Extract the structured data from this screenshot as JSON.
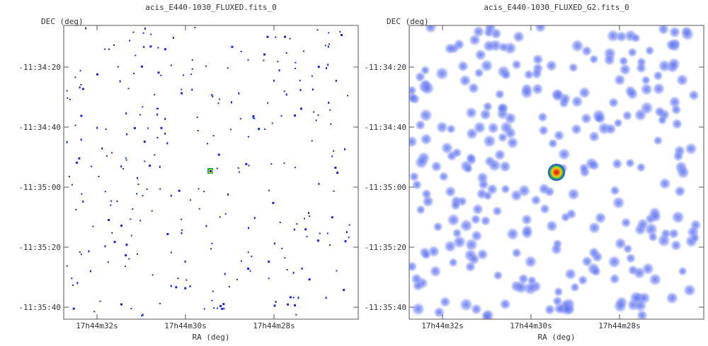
{
  "chart_data": [
    {
      "type": "scatter",
      "title": "acis_E440-1030_FLUXED.fits_0",
      "xlabel": "RA (deg)",
      "ylabel": "DEC (deg)",
      "x_ticks": [
        "17h44m32s",
        "17h44m30s",
        "17h44m28s"
      ],
      "y_ticks": [
        "-11:34:20",
        "-11:34:40",
        "-11:35:00",
        "-11:35:20",
        "-11:35:40"
      ],
      "render": "pixel",
      "source": {
        "ra": "17h44m29.2s",
        "dec": "-11:34:56",
        "label": "bright source"
      }
    },
    {
      "type": "scatter",
      "title": "acis_E440-1030_FLUXED_G2.fits_0",
      "xlabel": "RA (deg)",
      "ylabel": "DEC (deg)",
      "x_ticks": [
        "17h44m32s",
        "17h44m30s",
        "17h44m28s"
      ],
      "y_ticks": [
        "-11:34:20",
        "-11:34:40",
        "-11:35:00",
        "-11:35:20",
        "-11:35:40"
      ],
      "render": "smoothed",
      "source": {
        "ra": "17h44m29.2s",
        "dec": "-11:34:56",
        "label": "bright source"
      }
    }
  ],
  "colors": {
    "axis": "#555555",
    "event": "#1428d8",
    "smoothed_event": "#6e7ff0",
    "source_core": "#cc1010",
    "source_mid": "#f0d020",
    "source_outer": "#20b050"
  }
}
